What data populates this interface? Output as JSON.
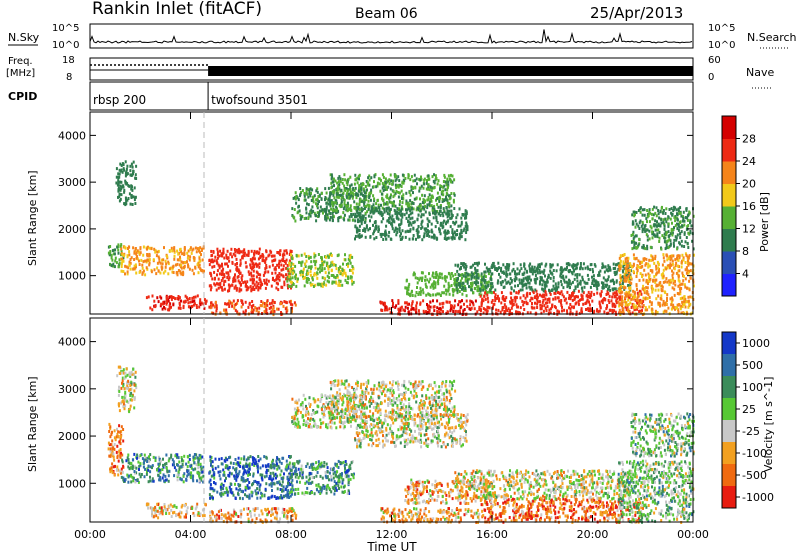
{
  "header": {
    "station": "Rankin Inlet (fitACF)",
    "beam": "Beam 06",
    "date": "25/Apr/2013"
  },
  "noise_panel": {
    "left_label": "N.Sky",
    "right_label": "N.Search",
    "left_ticks": [
      "10^5",
      "10^0"
    ],
    "right_ticks": [
      "10^5",
      "10^0"
    ]
  },
  "freq_panel": {
    "left_label_line1": "Freq.",
    "left_label_line2": "[MHz]",
    "right_label": "Nave",
    "left_ticks": [
      "18",
      "8"
    ],
    "right_ticks": [
      "60",
      "0"
    ]
  },
  "cpid_panel": {
    "label": "CPID",
    "modes": [
      {
        "name": "rbsp 200",
        "start_hour": 0
      },
      {
        "name": "twofsound 3501",
        "start_hour": 4.7
      }
    ]
  },
  "time_axis": {
    "label": "Time UT",
    "ticks": [
      "00:00",
      "04:00",
      "08:00",
      "12:00",
      "16:00",
      "20:00",
      "00:00"
    ],
    "range_hours": [
      0,
      24
    ]
  },
  "chart_data": [
    {
      "type": "heatmap",
      "name": "power",
      "ylabel": "Slant Range [km]",
      "ylim": [
        180,
        4500
      ],
      "yticks": [
        "1000",
        "2000",
        "3000",
        "4000"
      ],
      "colorbar_label": "Power [dB]",
      "colorbar_ticks": [
        "4",
        "8",
        "12",
        "16",
        "20",
        "24",
        "28"
      ],
      "colorbar_range": [
        0,
        32
      ],
      "colorbar_colors": [
        "#1f22ff",
        "#2a4fb5",
        "#2f7c4e",
        "#56b034",
        "#f2c91a",
        "#f5841a",
        "#ee2a14",
        "#d40000"
      ],
      "regions": [
        {
          "t0": 1.0,
          "t1": 1.8,
          "r0": 2550,
          "r1": 3500,
          "level": 9
        },
        {
          "t0": 0.7,
          "t1": 1.3,
          "r0": 1200,
          "r1": 1700,
          "level": 12
        },
        {
          "t0": 1.2,
          "t1": 4.5,
          "r0": 1050,
          "r1": 1650,
          "level": 20
        },
        {
          "t0": 2.2,
          "t1": 4.6,
          "r0": 300,
          "r1": 600,
          "level": 27
        },
        {
          "t0": 4.7,
          "t1": 8.0,
          "r0": 700,
          "r1": 1600,
          "level": 25
        },
        {
          "t0": 4.7,
          "t1": 8.2,
          "r0": 200,
          "r1": 500,
          "level": 24
        },
        {
          "t0": 7.8,
          "t1": 10.5,
          "r0": 800,
          "r1": 1500,
          "level": 15
        },
        {
          "t0": 8.0,
          "t1": 11.0,
          "r0": 2200,
          "r1": 2900,
          "level": 11
        },
        {
          "t0": 9.5,
          "t1": 14.5,
          "r0": 2400,
          "r1": 3200,
          "level": 12
        },
        {
          "t0": 10.5,
          "t1": 15.0,
          "r0": 1800,
          "r1": 2500,
          "level": 10
        },
        {
          "t0": 11.5,
          "t1": 15.5,
          "r0": 200,
          "r1": 500,
          "level": 27
        },
        {
          "t0": 12.5,
          "t1": 16.0,
          "r0": 600,
          "r1": 1100,
          "level": 13
        },
        {
          "t0": 15.5,
          "t1": 22.0,
          "r0": 200,
          "r1": 700,
          "level": 26
        },
        {
          "t0": 14.5,
          "t1": 21.5,
          "r0": 700,
          "r1": 1300,
          "level": 9
        },
        {
          "t0": 21.0,
          "t1": 24.0,
          "r0": 200,
          "r1": 1500,
          "level": 20
        },
        {
          "t0": 21.5,
          "t1": 24.0,
          "r0": 1600,
          "r1": 2500,
          "level": 11
        }
      ]
    },
    {
      "type": "heatmap",
      "name": "velocity",
      "ylabel": "Slant Range [km]",
      "ylim": [
        180,
        4500
      ],
      "yticks": [
        "1000",
        "2000",
        "3000",
        "4000"
      ],
      "colorbar_label": "Velocity [m s^-1]",
      "colorbar_ticks": [
        "1000",
        "500",
        "100",
        "25",
        "-25",
        "-100",
        "-500",
        "-1000"
      ],
      "colorbar_colors": [
        "#1438c8",
        "#2f6fa8",
        "#3b8c5a",
        "#57c834",
        "#c8c8c8",
        "#f2a020",
        "#f06a10",
        "#e81c10"
      ],
      "regions": [
        {
          "t0": 1.0,
          "t1": 1.8,
          "r0": 2550,
          "r1": 3500,
          "level": 4
        },
        {
          "t0": 0.7,
          "t1": 1.3,
          "r0": 1200,
          "r1": 2300,
          "level": 6
        },
        {
          "t0": 1.2,
          "t1": 4.5,
          "r0": 1050,
          "r1": 1650,
          "level": 2
        },
        {
          "t0": 2.2,
          "t1": 4.6,
          "r0": 300,
          "r1": 600,
          "level": 5
        },
        {
          "t0": 4.7,
          "t1": 8.0,
          "r0": 700,
          "r1": 1600,
          "level": 1
        },
        {
          "t0": 4.7,
          "t1": 8.2,
          "r0": 200,
          "r1": 500,
          "level": 5
        },
        {
          "t0": 7.8,
          "t1": 10.5,
          "r0": 800,
          "r1": 1500,
          "level": 2
        },
        {
          "t0": 8.0,
          "t1": 11.0,
          "r0": 2200,
          "r1": 2900,
          "level": 4
        },
        {
          "t0": 9.5,
          "t1": 14.5,
          "r0": 2400,
          "r1": 3200,
          "level": 4
        },
        {
          "t0": 10.5,
          "t1": 15.0,
          "r0": 1800,
          "r1": 2500,
          "level": 4
        },
        {
          "t0": 11.5,
          "t1": 15.5,
          "r0": 200,
          "r1": 500,
          "level": 5
        },
        {
          "t0": 12.5,
          "t1": 16.0,
          "r0": 600,
          "r1": 1100,
          "level": 5
        },
        {
          "t0": 15.5,
          "t1": 22.0,
          "r0": 200,
          "r1": 700,
          "level": 6
        },
        {
          "t0": 14.5,
          "t1": 21.5,
          "r0": 700,
          "r1": 1300,
          "level": 4
        },
        {
          "t0": 21.0,
          "t1": 24.0,
          "r0": 200,
          "r1": 1500,
          "level": 3
        },
        {
          "t0": 21.5,
          "t1": 24.0,
          "r0": 1600,
          "r1": 2500,
          "level": 3
        }
      ]
    }
  ]
}
